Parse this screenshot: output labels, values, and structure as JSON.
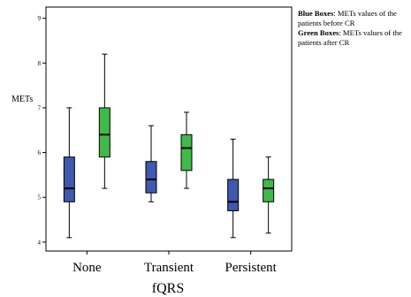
{
  "chart_data": {
    "type": "box",
    "xlabel": "fQRS",
    "ylabel": "METs",
    "categories": [
      "None",
      "Transient",
      "Persistent"
    ],
    "ylim": [
      3.8,
      9.25
    ],
    "yticks": [
      4,
      5,
      6,
      7,
      8,
      9
    ],
    "grid": false,
    "legend_position": "top-right",
    "series": [
      {
        "color": "#3d59b0",
        "boxes": [
          {
            "min": 4.1,
            "q1": 4.9,
            "median": 5.2,
            "q3": 5.9,
            "max": 7.0
          },
          {
            "min": 4.9,
            "q1": 5.1,
            "median": 5.4,
            "q3": 5.8,
            "max": 6.6
          },
          {
            "min": 4.1,
            "q1": 4.7,
            "median": 4.9,
            "q3": 5.4,
            "max": 6.3
          }
        ]
      },
      {
        "color": "#3dbb46",
        "boxes": [
          {
            "min": 5.2,
            "q1": 5.9,
            "median": 6.4,
            "q3": 7.0,
            "max": 8.2
          },
          {
            "min": 5.2,
            "q1": 5.6,
            "median": 6.1,
            "q3": 6.4,
            "max": 6.9
          },
          {
            "min": 4.2,
            "q1": 4.9,
            "median": 5.2,
            "q3": 5.4,
            "max": 5.9
          }
        ]
      }
    ]
  },
  "legend": {
    "blue_title": "Blue Boxes",
    "blue_text": ": METs values of the patients before CR",
    "green_title": "Green Boxes",
    "green_text": ": METs values of the patients after CR"
  }
}
